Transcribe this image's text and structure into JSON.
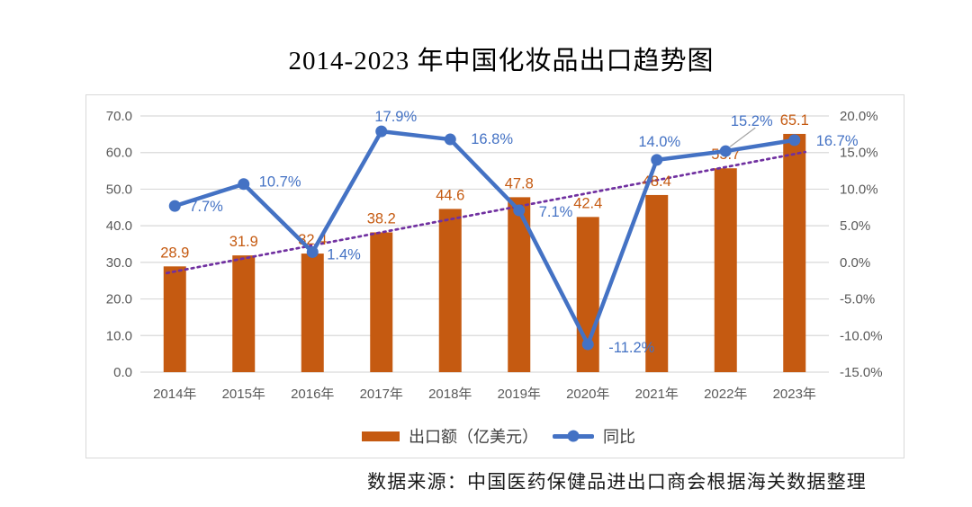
{
  "title": "2014-2023 年中国化妆品出口趋势图",
  "source_note": "数据来源：中国医药保健品进出口商会根据海关数据整理",
  "legend": {
    "bar_label": "出口额（亿美元）",
    "line_label": "同比"
  },
  "colors": {
    "bar": "#c55a11",
    "line": "#4472c4",
    "trendline": "#7030a0",
    "leader_line": "#a6a6a6",
    "grid": "#d9d9d9",
    "axis_text": "#595959"
  },
  "chart_data": {
    "type": "bar+line combo",
    "categories": [
      "2014年",
      "2015年",
      "2016年",
      "2017年",
      "2018年",
      "2019年",
      "2020年",
      "2021年",
      "2022年",
      "2023年"
    ],
    "series": [
      {
        "name": "出口额（亿美元）",
        "type": "bar",
        "axis": "left",
        "values": [
          28.9,
          31.9,
          32.4,
          38.2,
          44.6,
          47.8,
          42.4,
          48.4,
          55.7,
          65.1
        ],
        "labels": [
          "28.9",
          "31.9",
          "32.4",
          "38.2",
          "44.6",
          "47.8",
          "42.4",
          "48.4",
          "55.7",
          "65.1"
        ]
      },
      {
        "name": "同比",
        "type": "line",
        "axis": "right",
        "values": [
          7.7,
          10.7,
          1.4,
          17.9,
          16.8,
          7.1,
          -11.2,
          14.0,
          15.2,
          16.7
        ],
        "labels": [
          "7.7%",
          "10.7%",
          "1.4%",
          "17.9%",
          "16.8%",
          "7.1%",
          "-11.2%",
          "14.0%",
          "15.2%",
          "16.7%"
        ]
      }
    ],
    "trendline": {
      "type": "linear",
      "style": "dotted",
      "start_value": 27.5,
      "end_value": 59.6
    },
    "left_axis": {
      "min": 0,
      "max": 70,
      "step": 10,
      "ticks": [
        "70.0",
        "60.0",
        "50.0",
        "40.0",
        "30.0",
        "20.0",
        "10.0",
        "0.0"
      ]
    },
    "right_axis": {
      "min": -15,
      "max": 20,
      "step": 5,
      "ticks": [
        "20.0%",
        "15.0%",
        "10.0%",
        "5.0%",
        "0.0%",
        "-5.0%",
        "-10.0%",
        "-15.0%"
      ]
    },
    "grid": "horizontal only",
    "legend_position": "bottom-center-inside"
  }
}
